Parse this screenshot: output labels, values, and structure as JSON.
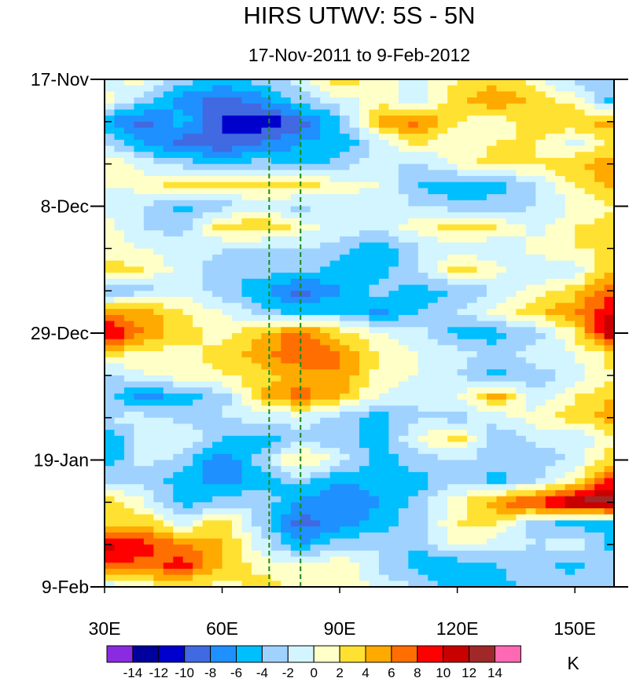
{
  "chart_data": {
    "type": "heatmap",
    "title": "HIRS UTWV: 5S - 5N",
    "subtitle": "17-Nov-2011 to 9-Feb-2012",
    "xlabel": "",
    "ylabel": "",
    "xlim": [
      30,
      160
    ],
    "ylim_days": [
      0,
      84
    ],
    "x_ticks": [
      {
        "value": 30,
        "label": "30E"
      },
      {
        "value": 60,
        "label": "60E"
      },
      {
        "value": 90,
        "label": "90E"
      },
      {
        "value": 120,
        "label": "120E"
      },
      {
        "value": 150,
        "label": "150E"
      }
    ],
    "y_ticks": [
      {
        "day": 0,
        "label": "17-Nov"
      },
      {
        "day": 21,
        "label": "8-Dec"
      },
      {
        "day": 42,
        "label": "29-Dec"
      },
      {
        "day": 63,
        "label": "19-Jan"
      },
      {
        "day": 84,
        "label": "9-Feb"
      }
    ],
    "y_minor_tick_step_days": 7,
    "reference_lines_lon": [
      72,
      80
    ],
    "reference_line_color": "#1a8a1a",
    "colorbar": {
      "unit": "K",
      "levels": [
        -14,
        -12,
        -10,
        -8,
        -6,
        -4,
        -2,
        0,
        2,
        4,
        6,
        8,
        10,
        12,
        14
      ],
      "colors": [
        "#8a2be2",
        "#00009c",
        "#0000cd",
        "#4169e1",
        "#1e90ff",
        "#00bfff",
        "#a0d2ff",
        "#d2f5ff",
        "#ffffc8",
        "#ffe132",
        "#ffaa00",
        "#ff6e00",
        "#ff0000",
        "#c80000",
        "#a02828",
        "#ff69b4"
      ]
    },
    "grid_lon": [
      30,
      40,
      50,
      60,
      70,
      80,
      90,
      100,
      110,
      120,
      130,
      140,
      150,
      160
    ],
    "grid_day_step": 3.5,
    "z": [
      [
        -1,
        1,
        -3,
        -5,
        -3,
        -1,
        4,
        1,
        -1,
        2,
        3,
        1,
        -3,
        -2
      ],
      [
        1,
        -3,
        -7,
        -9,
        -7,
        -3,
        -1,
        1,
        -1,
        3,
        6,
        3,
        1,
        -5
      ],
      [
        -6,
        -9,
        -5,
        -10,
        -12,
        -9,
        -4,
        5,
        7,
        2,
        1,
        3,
        4,
        5
      ],
      [
        -2,
        -6,
        -9,
        -10,
        -8,
        -6,
        -6,
        -1,
        3,
        0,
        2,
        2,
        -1,
        3
      ],
      [
        2,
        -1,
        -3,
        -4,
        -3,
        -5,
        -3,
        -1,
        -3,
        1,
        3,
        2,
        4,
        5
      ],
      [
        0,
        1,
        3,
        2,
        3,
        3,
        1,
        0,
        -4,
        -6,
        -5,
        -2,
        2,
        5
      ],
      [
        -1,
        -2,
        -5,
        -3,
        -1,
        -3,
        -1,
        -1,
        -2,
        -3,
        -3,
        -2,
        0,
        2
      ],
      [
        1,
        -2,
        -3,
        3,
        4,
        1,
        -1,
        -1,
        1,
        3,
        2,
        -1,
        2,
        3
      ],
      [
        1,
        0,
        -1,
        -2,
        -3,
        -2,
        -3,
        -6,
        -2,
        -1,
        -2,
        1,
        2,
        2
      ],
      [
        3,
        2,
        -1,
        -3,
        -3,
        -3,
        -5,
        -5,
        -2,
        3,
        1,
        -2,
        -1,
        4
      ],
      [
        -4,
        -3,
        -1,
        -3,
        -6,
        -9,
        -6,
        -3,
        -5,
        -4,
        -2,
        1,
        3,
        8
      ],
      [
        5,
        5,
        2,
        0,
        -3,
        -5,
        -4,
        -7,
        -4,
        -2,
        1,
        3,
        6,
        10
      ],
      [
        11,
        6,
        3,
        1,
        4,
        7,
        3,
        0,
        -1,
        -5,
        -5,
        -3,
        2,
        13
      ],
      [
        3,
        1,
        1,
        3,
        5,
        8,
        6,
        2,
        0,
        -1,
        -3,
        -1,
        0,
        3
      ],
      [
        -3,
        0,
        1,
        2,
        3,
        5,
        6,
        1,
        0,
        -2,
        -5,
        -3,
        -1,
        2
      ],
      [
        -3,
        -7,
        -5,
        -3,
        4,
        7,
        4,
        0,
        -2,
        0,
        5,
        -2,
        2,
        4
      ],
      [
        -2,
        -1,
        -3,
        -2,
        -1,
        -1,
        -3,
        -5,
        -2,
        -3,
        -1,
        1,
        3,
        5
      ],
      [
        -6,
        -1,
        0,
        -4,
        -5,
        -3,
        -3,
        -5,
        0,
        3,
        -4,
        -1,
        -2,
        2
      ],
      [
        -6,
        -1,
        -3,
        -8,
        -3,
        3,
        -1,
        -5,
        -3,
        -2,
        -3,
        -4,
        -1,
        3
      ],
      [
        -2,
        -3,
        -5,
        -7,
        -5,
        -3,
        -6,
        -5,
        -5,
        -2,
        -5,
        -2,
        2,
        9
      ],
      [
        4,
        0,
        -5,
        -3,
        -2,
        -7,
        -8,
        -6,
        -3,
        1,
        6,
        9,
        13,
        14
      ],
      [
        3,
        4,
        -1,
        4,
        -3,
        -9,
        -7,
        -5,
        -3,
        2,
        2,
        -3,
        -5,
        -4
      ],
      [
        11,
        9,
        6,
        4,
        -1,
        -6,
        -3,
        -2,
        -4,
        1,
        -1,
        -2,
        -1,
        -5
      ],
      [
        8,
        7,
        9,
        4,
        1,
        1,
        2,
        -2,
        -5,
        -6,
        -4,
        -3,
        -5,
        -2
      ],
      [
        -2,
        1,
        2,
        1,
        3,
        1,
        2,
        -1,
        -2,
        -5,
        -5,
        -3,
        -2,
        -3
      ]
    ]
  }
}
